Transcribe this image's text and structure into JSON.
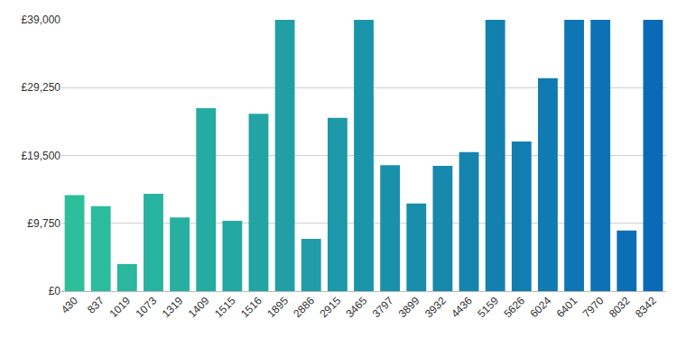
{
  "chart_data": {
    "type": "bar",
    "categories": [
      "430",
      "837",
      "1019",
      "1073",
      "1319",
      "1409",
      "1515",
      "1516",
      "1895",
      "2886",
      "2915",
      "3465",
      "3797",
      "3899",
      "3932",
      "4436",
      "5159",
      "5626",
      "6024",
      "6401",
      "7970",
      "8032",
      "8342"
    ],
    "values": [
      13800,
      12200,
      3900,
      14000,
      10600,
      26300,
      10100,
      25500,
      39000,
      7500,
      24900,
      39000,
      18100,
      12600,
      18000,
      20000,
      39000,
      21500,
      30600,
      39000,
      39000,
      8700,
      39000
    ],
    "colors": [
      "#2dbf9c",
      "#2bbb9d",
      "#2ab79e",
      "#28b3a0",
      "#27b0a1",
      "#25aca2",
      "#23a8a3",
      "#22a4a4",
      "#20a0a6",
      "#1f9ca7",
      "#1d98a8",
      "#1b95aa",
      "#1a91ab",
      "#188dac",
      "#1789ad",
      "#1585af",
      "#1381b0",
      "#127db1",
      "#107ab3",
      "#0e76b4",
      "#0d72b5",
      "#0b6eb7",
      "#0a6ab8"
    ],
    "ylim": [
      0,
      39000
    ],
    "yticks": [
      {
        "value": 0,
        "label": "£0"
      },
      {
        "value": 9750,
        "label": "£9,750"
      },
      {
        "value": 19500,
        "label": "£19,500"
      },
      {
        "value": 29250,
        "label": "£29,250"
      },
      {
        "value": 39000,
        "label": "£39,000"
      }
    ],
    "grid": true
  }
}
